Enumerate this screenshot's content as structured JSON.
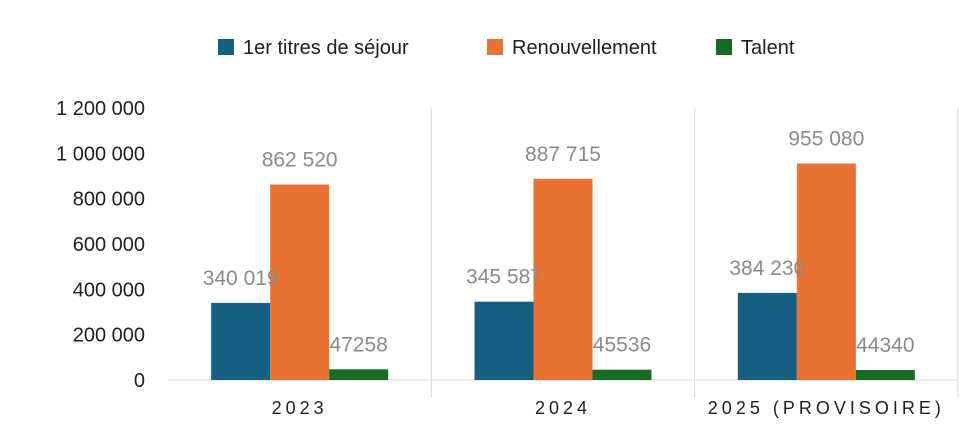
{
  "chart_data": {
    "type": "bar",
    "title": "",
    "xlabel": "",
    "ylabel": "",
    "categories": [
      "2023",
      "2024",
      "2025 (PROVISOIRE)"
    ],
    "series": [
      {
        "name": "1er titres de séjour",
        "color": "#156082",
        "values": [
          340019,
          345587,
          384230
        ],
        "labels": [
          "340 019",
          "345 587",
          "384 230"
        ]
      },
      {
        "name": "Renouvellement",
        "color": "#E97132",
        "values": [
          862520,
          887715,
          955080
        ],
        "labels": [
          "862 520",
          "887 715",
          "955 080"
        ]
      },
      {
        "name": "Talent",
        "color": "#196B24",
        "values": [
          47258,
          45536,
          44340
        ],
        "labels": [
          "47258",
          "45536",
          "44340"
        ]
      }
    ],
    "ylim": [
      0,
      1200000
    ],
    "yticks": [
      0,
      200000,
      400000,
      600000,
      800000,
      1000000,
      1200000
    ],
    "ytick_labels": [
      "0",
      "200 000",
      "400 000",
      "600 000",
      "800 000",
      "1 000 000",
      "1 200 000"
    ],
    "grid": false,
    "legend_position": "top"
  }
}
